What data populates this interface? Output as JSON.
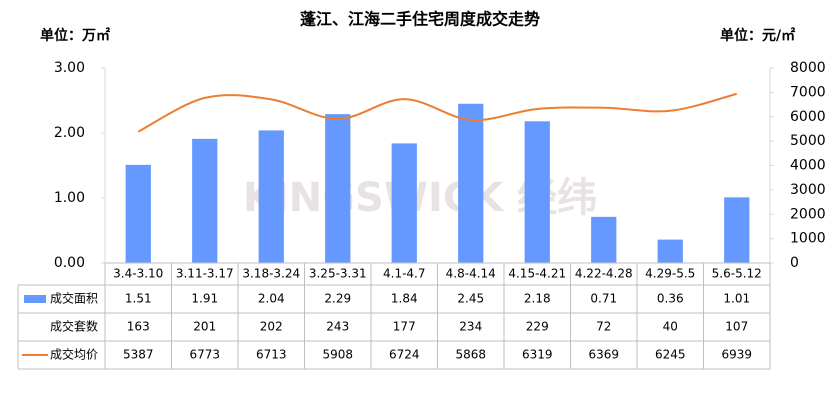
{
  "chart_data": {
    "type": "bar",
    "title": "蓬江、江海二手住宅周度成交走势",
    "y_label": "单位：万㎡",
    "y2_label": "单位：元/㎡",
    "watermark": "KINGSWICK 经纬",
    "categories": [
      "3.4-3.10",
      "3.11-3.17",
      "3.18-3.24",
      "3.25-3.31",
      "4.1-4.7",
      "4.8-4.14",
      "4.15-4.21",
      "4.22-4.28",
      "4.29-5.5",
      "5.6-5.12"
    ],
    "series": [
      {
        "name": "成交面积",
        "type": "bar",
        "color": "#6699ff",
        "values": [
          1.51,
          1.91,
          2.04,
          2.29,
          1.84,
          2.45,
          2.18,
          0.71,
          0.36,
          1.01
        ]
      },
      {
        "name": "成交套数",
        "values": [
          163,
          201,
          202,
          243,
          177,
          234,
          229,
          72,
          40,
          107
        ]
      },
      {
        "name": "成交均价",
        "type": "line",
        "axis": "y2",
        "color": "#ed7d31",
        "values": [
          5387,
          6773,
          6713,
          5908,
          6724,
          5868,
          6319,
          6369,
          6245,
          6939
        ]
      }
    ],
    "ylim": [
      0,
      3
    ],
    "yticks": [
      {
        "value": 0,
        "label": "0.00"
      },
      {
        "value": 1,
        "label": "1.00"
      },
      {
        "value": 2,
        "label": "2.00"
      },
      {
        "value": 3,
        "label": "3.00"
      }
    ],
    "y2lim": [
      0,
      8000
    ],
    "y2ticks": [
      0,
      1000,
      2000,
      3000,
      4000,
      5000,
      6000,
      7000,
      8000
    ]
  }
}
